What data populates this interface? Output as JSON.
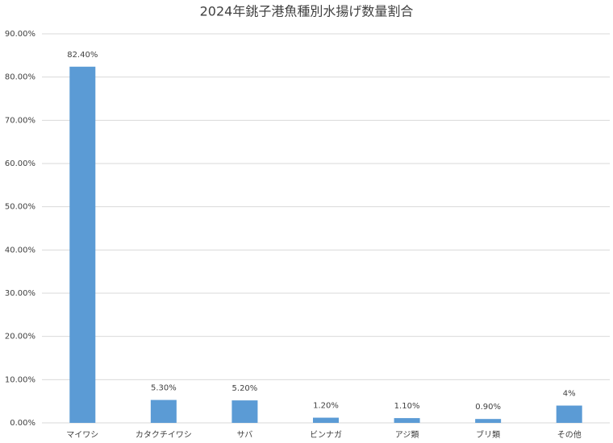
{
  "chart_data": {
    "type": "bar",
    "title": "2024年銚子港魚種別水揚げ数量割合",
    "categories": [
      "マイワシ",
      "カタクチイワシ",
      "サバ",
      "ビンナガ",
      "アジ類",
      "ブリ類",
      "その他"
    ],
    "values": [
      82.4,
      5.3,
      5.2,
      1.2,
      1.1,
      0.9,
      4
    ],
    "value_labels": [
      "82.40%",
      "5.30%",
      "5.20%",
      "1.20%",
      "1.10%",
      "0.90%",
      "4%"
    ],
    "color": "#5b9bd5",
    "ylim": [
      0,
      90
    ],
    "yticks": [
      {
        "value": 0,
        "label": "0.00%"
      },
      {
        "value": 10,
        "label": "10.00%"
      },
      {
        "value": 20,
        "label": "20.00%"
      },
      {
        "value": 30,
        "label": "30.00%"
      },
      {
        "value": 40,
        "label": "40.00%"
      },
      {
        "value": 50,
        "label": "50.00%"
      },
      {
        "value": 60,
        "label": "60.00%"
      },
      {
        "value": 70,
        "label": "70.00%"
      },
      {
        "value": 80,
        "label": "80.00%"
      },
      {
        "value": 90,
        "label": "90.00%"
      }
    ],
    "grid": true
  }
}
